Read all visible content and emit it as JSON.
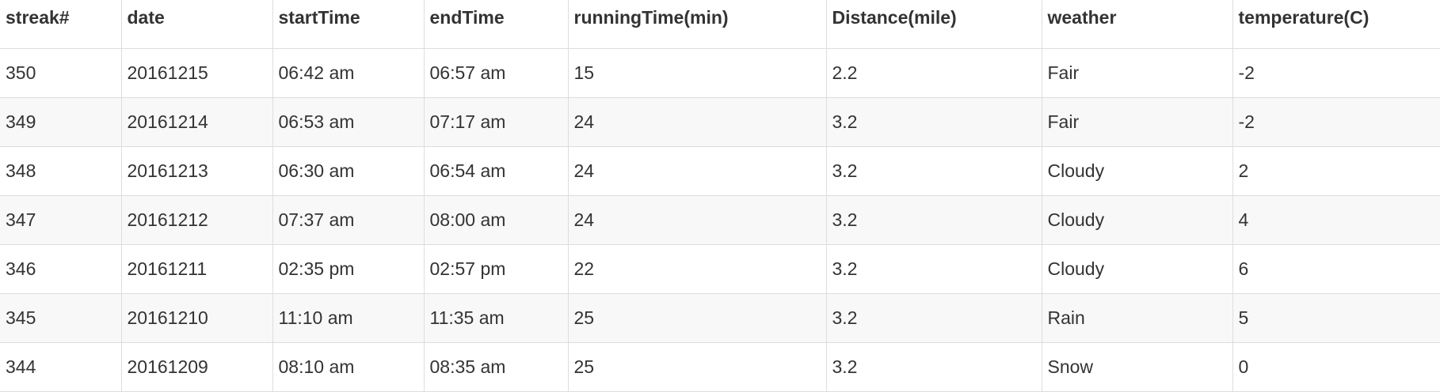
{
  "table": {
    "columns": [
      "streak#",
      "date",
      "startTime",
      "endTime",
      "runningTime(min)",
      "Distance(mile)",
      "weather",
      "temperature(C)"
    ],
    "rows": [
      [
        "350",
        "20161215",
        "06:42 am",
        "06:57 am",
        "15",
        "2.2",
        "Fair",
        "-2"
      ],
      [
        "349",
        "20161214",
        "06:53 am",
        "07:17 am",
        "24",
        "3.2",
        "Fair",
        "-2"
      ],
      [
        "348",
        "20161213",
        "06:30 am",
        "06:54 am",
        "24",
        "3.2",
        "Cloudy",
        "2"
      ],
      [
        "347",
        "20161212",
        "07:37 am",
        "08:00 am",
        "24",
        "3.2",
        "Cloudy",
        "4"
      ],
      [
        "346",
        "20161211",
        "02:35 pm",
        "02:57 pm",
        "22",
        "3.2",
        "Cloudy",
        "6"
      ],
      [
        "345",
        "20161210",
        "11:10 am",
        "11:35 am",
        "25",
        "3.2",
        "Rain",
        "5"
      ],
      [
        "344",
        "20161209",
        "08:10 am",
        "08:35 am",
        "25",
        "3.2",
        "Snow",
        "0"
      ]
    ]
  }
}
